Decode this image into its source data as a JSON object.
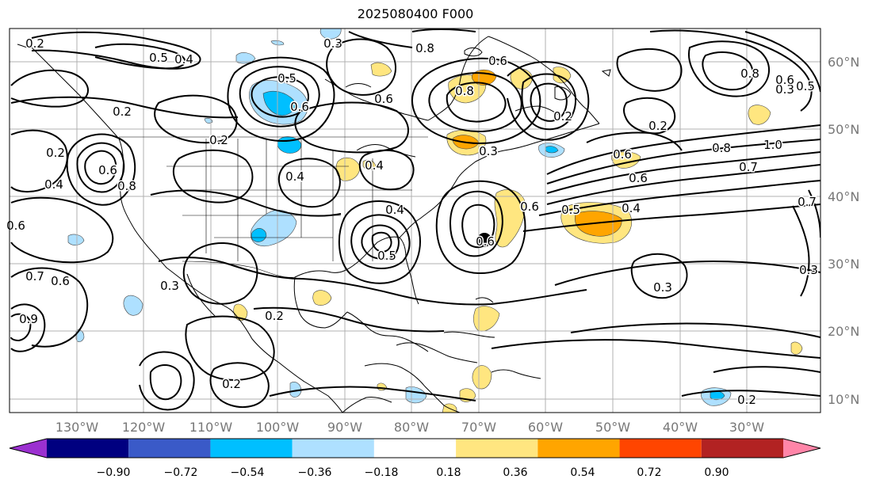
{
  "title": "2025080400 F000",
  "map": {
    "lon_labels": [
      "130°W",
      "120°W",
      "110°W",
      "100°W",
      "90°W",
      "80°W",
      "70°W",
      "60°W",
      "50°W",
      "40°W",
      "30°W"
    ],
    "lat_labels": [
      "60°N",
      "50°N",
      "40°N",
      "30°N",
      "20°N",
      "10°N"
    ],
    "contour_labels": [
      "0.2",
      "0.5",
      "0.4",
      "0.3",
      "0.5",
      "0.6",
      "0.2",
      "0.2",
      "0.4",
      "0.6",
      "0.8",
      "0.4",
      "0.2",
      "0.4",
      "0.6",
      "0.8",
      "0.3",
      "0.6",
      "0.8",
      "1.0",
      "0.7",
      "0.8",
      "0.6",
      "0.2",
      "0.5",
      "0.4",
      "0.6",
      "0.3",
      "0.3",
      "0.2",
      "0.7",
      "0.6",
      "0.3",
      "0.2",
      "0.2",
      "0.5",
      "0.6",
      "0.6",
      "0.4",
      "0.9",
      "0.5",
      "0.8",
      "0.6",
      "0.2",
      "0.6",
      "0.7",
      "0.3"
    ],
    "marker": "black dot near 70°W, 35°N"
  },
  "colorbar": {
    "ticks": [
      "−0.90",
      "−0.72",
      "−0.54",
      "−0.36",
      "−0.18",
      "0.18",
      "0.36",
      "0.54",
      "0.72",
      "0.90"
    ],
    "colors": [
      "#9b30d0",
      "#000080",
      "#3a5ac8",
      "#00bfff",
      "#aee0ff",
      "#ffffff",
      "#ffe680",
      "#ffa500",
      "#ff4500",
      "#b22222",
      "#ff85a8"
    ]
  }
}
